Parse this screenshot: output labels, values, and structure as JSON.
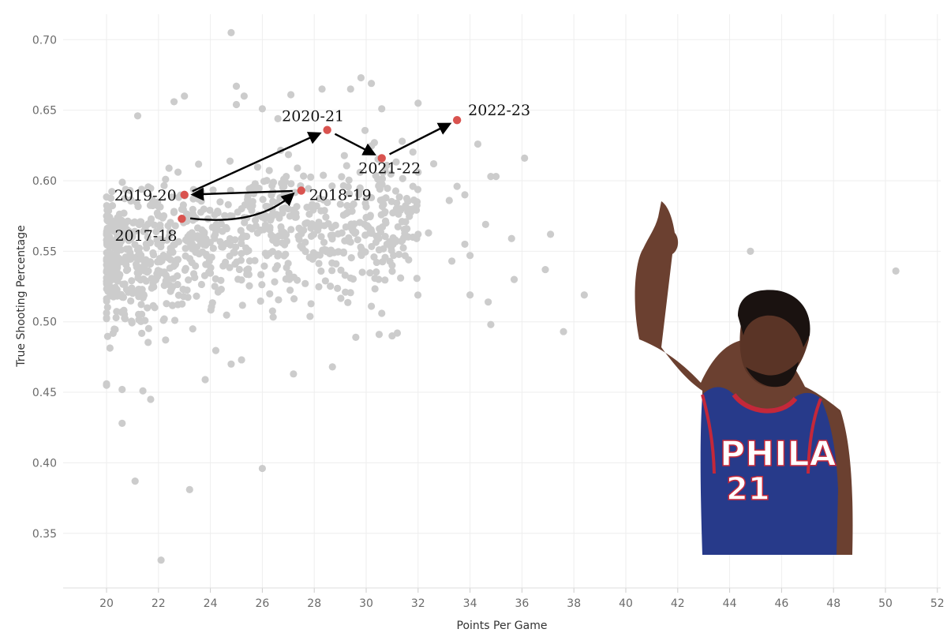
{
  "chart_data": {
    "type": "scatter",
    "xlabel": "Points Per Game",
    "ylabel": "True Shooting Percentage",
    "xlim": [
      19,
      52
    ],
    "ylim": [
      0.32,
      0.72
    ],
    "x_ticks": [
      20,
      22,
      24,
      26,
      28,
      30,
      32,
      34,
      36,
      38,
      40,
      42,
      44,
      46,
      48,
      50,
      52
    ],
    "y_ticks": [
      0.35,
      0.4,
      0.45,
      0.5,
      0.55,
      0.6,
      0.65,
      0.7
    ],
    "grid": true,
    "colors": {
      "background_points": "#cccccc",
      "highlight_points": "#d9534f",
      "arrows": "#000000",
      "grid": "#eeeeee"
    },
    "highlight_points": [
      {
        "season": "2017-18",
        "x": 22.9,
        "y": 0.573
      },
      {
        "season": "2018-19",
        "x": 27.5,
        "y": 0.593
      },
      {
        "season": "2019-20",
        "x": 23.0,
        "y": 0.59
      },
      {
        "season": "2020-21",
        "x": 28.5,
        "y": 0.636
      },
      {
        "season": "2021-22",
        "x": 30.6,
        "y": 0.616
      },
      {
        "season": "2022-23",
        "x": 33.5,
        "y": 0.643
      }
    ],
    "background_points": [
      [
        24.8,
        0.705
      ],
      [
        29.8,
        0.673
      ],
      [
        30.2,
        0.669
      ],
      [
        28.3,
        0.665
      ],
      [
        29.4,
        0.665
      ],
      [
        25.0,
        0.667
      ],
      [
        27.1,
        0.661
      ],
      [
        25.3,
        0.66
      ],
      [
        23.0,
        0.66
      ],
      [
        22.6,
        0.656
      ],
      [
        32.0,
        0.655
      ],
      [
        25.0,
        0.654
      ],
      [
        30.6,
        0.651
      ],
      [
        21.2,
        0.646
      ],
      [
        26.0,
        0.651
      ],
      [
        26.6,
        0.644
      ],
      [
        36.1,
        0.616
      ],
      [
        34.3,
        0.626
      ],
      [
        34.8,
        0.603
      ],
      [
        35.0,
        0.603
      ],
      [
        33.5,
        0.596
      ],
      [
        33.8,
        0.59
      ],
      [
        33.2,
        0.586
      ],
      [
        34.6,
        0.569
      ],
      [
        35.6,
        0.559
      ],
      [
        37.1,
        0.562
      ],
      [
        33.8,
        0.555
      ],
      [
        33.3,
        0.543
      ],
      [
        34.0,
        0.547
      ],
      [
        36.9,
        0.537
      ],
      [
        35.7,
        0.53
      ],
      [
        38.4,
        0.519
      ],
      [
        34.7,
        0.514
      ],
      [
        34.0,
        0.519
      ],
      [
        34.8,
        0.498
      ],
      [
        37.6,
        0.493
      ],
      [
        44.8,
        0.55
      ],
      [
        50.4,
        0.536
      ],
      [
        32.4,
        0.563
      ],
      [
        32.0,
        0.562
      ],
      [
        31.2,
        0.58
      ],
      [
        31.6,
        0.578
      ],
      [
        31.4,
        0.571
      ],
      [
        31.8,
        0.56
      ],
      [
        30.8,
        0.555
      ],
      [
        30.5,
        0.551
      ],
      [
        31.0,
        0.54
      ],
      [
        32.0,
        0.606
      ],
      [
        32.6,
        0.612
      ],
      [
        31.8,
        0.596
      ],
      [
        31.3,
        0.58
      ],
      [
        30.2,
        0.588
      ],
      [
        30.0,
        0.574
      ],
      [
        29.8,
        0.548
      ],
      [
        29.4,
        0.531
      ],
      [
        29.2,
        0.521
      ],
      [
        30.2,
        0.511
      ],
      [
        30.6,
        0.506
      ],
      [
        31.0,
        0.49
      ],
      [
        31.2,
        0.492
      ],
      [
        30.5,
        0.491
      ],
      [
        29.6,
        0.489
      ],
      [
        28.7,
        0.468
      ],
      [
        27.2,
        0.463
      ],
      [
        26.0,
        0.396
      ],
      [
        23.2,
        0.381
      ],
      [
        21.1,
        0.387
      ],
      [
        22.1,
        0.331
      ],
      [
        20.6,
        0.428
      ],
      [
        20.6,
        0.452
      ],
      [
        21.4,
        0.451
      ],
      [
        21.7,
        0.445
      ],
      [
        20.0,
        0.455
      ],
      [
        20.0,
        0.456
      ],
      [
        23.8,
        0.459
      ],
      [
        24.8,
        0.47
      ],
      [
        25.2,
        0.473
      ]
    ]
  }
}
